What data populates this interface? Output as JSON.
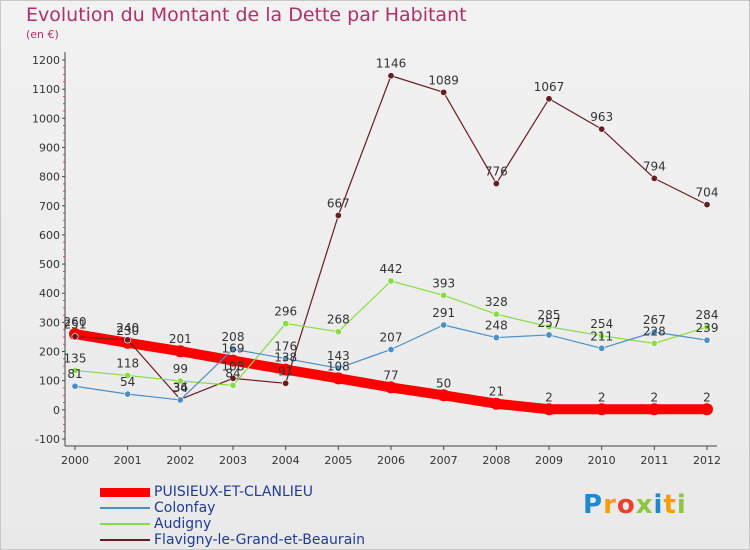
{
  "chart_data": {
    "type": "line",
    "title": "Evolution du Montant de la Dette par Habitant",
    "subtitle": "(en €)",
    "xlabel": "",
    "ylabel": "",
    "x": [
      "2000",
      "2001",
      "2002",
      "2003",
      "2004",
      "2005",
      "2006",
      "2007",
      "2008",
      "2009",
      "2010",
      "2011",
      "2012"
    ],
    "yticks": [
      -100,
      0,
      100,
      200,
      300,
      400,
      500,
      600,
      700,
      800,
      900,
      1000,
      1100,
      1200
    ],
    "ylim": [
      -100,
      1200
    ],
    "grid": false,
    "legend_position": "bottom-left",
    "series": [
      {
        "name": "PUISIEUX-ET-CLANLIEU",
        "color": "#ff0000",
        "width": "thick",
        "values": [
          260,
          230,
          201,
          169,
          138,
          108,
          77,
          50,
          21,
          2,
          2,
          2,
          2
        ],
        "labels": [
          "260",
          "230",
          "201",
          "169",
          "138",
          "108",
          "77",
          "50",
          "21",
          "2",
          "2",
          "2",
          "2"
        ]
      },
      {
        "name": "Colonfay",
        "color": "#4a8fc8",
        "width": "thin",
        "values": [
          81,
          54,
          34,
          208,
          176,
          143,
          207,
          291,
          248,
          257,
          211,
          267,
          239
        ],
        "labels": [
          "81",
          "54",
          "34",
          "208",
          "176",
          "143",
          "207",
          "291",
          "248",
          "257",
          "211",
          "267",
          "239"
        ]
      },
      {
        "name": "Audigny",
        "color": "#88dd44",
        "width": "thin",
        "values": [
          135,
          118,
          99,
          84,
          296,
          268,
          442,
          393,
          328,
          285,
          254,
          228,
          284
        ],
        "labels": [
          "135",
          "118",
          "99",
          "84",
          "296",
          "268",
          "442",
          "393",
          "328",
          "285",
          "254",
          "228",
          "284"
        ]
      },
      {
        "name": "Flavigny-le-Grand-et-Beaurain",
        "color": "#6a1c24",
        "width": "thin",
        "values": [
          251,
          240,
          36,
          108,
          91,
          667,
          1146,
          1089,
          776,
          1067,
          963,
          794,
          704
        ],
        "labels": [
          "251",
          "240",
          "36",
          "108",
          "91",
          "667",
          "1146",
          "1089",
          "776",
          "1067",
          "963",
          "794",
          "704"
        ]
      }
    ]
  },
  "logo": {
    "text": "Proxiti",
    "letters": [
      "P",
      "r",
      "o",
      "x",
      "i",
      "t",
      "i"
    ],
    "colors": [
      "#1e88d0",
      "#f5a000",
      "#e8402a",
      "#8dc63f",
      "#1e88d0",
      "#f5a000",
      "#8dc63f"
    ]
  }
}
